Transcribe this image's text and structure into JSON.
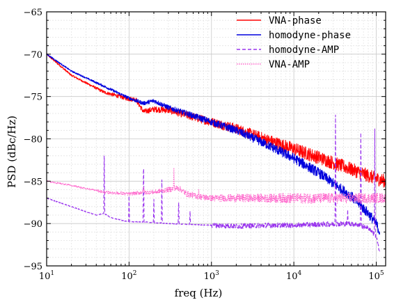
{
  "chart_data": {
    "type": "line",
    "title": "",
    "xlabel": "freq (Hz)",
    "ylabel": "PSD (dBc/Hz)",
    "x_scale": "log",
    "xlim": [
      10,
      130000
    ],
    "ylim": [
      -95,
      -65
    ],
    "grid": true,
    "legend_position": "top-right",
    "x_ticks": [
      10,
      100,
      1000,
      10000,
      100000
    ],
    "x_tick_labels": [
      {
        "base": "10",
        "exp": "1"
      },
      {
        "base": "10",
        "exp": "2"
      },
      {
        "base": "10",
        "exp": "3"
      },
      {
        "base": "10",
        "exp": "4"
      },
      {
        "base": "10",
        "exp": "5"
      }
    ],
    "y_ticks": [
      -95,
      -90,
      -85,
      -80,
      -75,
      -70,
      -65
    ],
    "y_tick_labels": [
      "−95",
      "−90",
      "−85",
      "−80",
      "−75",
      "−70",
      "−65"
    ],
    "series": [
      {
        "name": "VNA-phase",
        "color": "#ff0000",
        "style": "solid",
        "noise": 0.8,
        "x": [
          10,
          20,
          50,
          100,
          120,
          150,
          200,
          300,
          500,
          1000,
          2000,
          5000,
          10000,
          20000,
          50000,
          100000,
          130000
        ],
        "y": [
          -70,
          -72.5,
          -74.5,
          -75.3,
          -75.3,
          -76.8,
          -76.5,
          -76.6,
          -77.2,
          -78,
          -78.8,
          -80.2,
          -81.2,
          -82.2,
          -83.6,
          -84.7,
          -85
        ]
      },
      {
        "name": "homodyne-phase",
        "color": "#0000dd",
        "style": "solid",
        "noise": 0.6,
        "x": [
          10,
          20,
          50,
          100,
          150,
          200,
          300,
          500,
          1000,
          2000,
          5000,
          10000,
          20000,
          50000,
          80000,
          100000,
          110000
        ],
        "y": [
          -70,
          -72,
          -73.8,
          -75.2,
          -75.8,
          -75.5,
          -76.3,
          -77,
          -78,
          -79,
          -80.8,
          -82.3,
          -84,
          -86.8,
          -88.8,
          -90,
          -91
        ]
      },
      {
        "name": "homodyne-AMP",
        "color": "#9933ee",
        "style": "dashed",
        "noise": 0.3,
        "x": [
          10,
          20,
          30,
          40,
          50,
          60,
          80,
          100,
          150,
          200,
          300,
          500,
          1000,
          2000,
          5000,
          10000,
          20000,
          50000,
          80000,
          100000,
          110000
        ],
        "y": [
          -87,
          -88,
          -88.6,
          -89,
          -88.8,
          -89.3,
          -89.6,
          -89.8,
          -89.8,
          -89.9,
          -90,
          -90.1,
          -90.2,
          -90.3,
          -90.2,
          -90.2,
          -90.1,
          -90,
          -90.5,
          -91.5,
          -93.5
        ],
        "spikes": [
          {
            "x": 50,
            "y": -80.4
          },
          {
            "x": 100,
            "y": -86.5
          },
          {
            "x": 150,
            "y": -81.8
          },
          {
            "x": 200,
            "y": -87
          },
          {
            "x": 250,
            "y": -84.5
          },
          {
            "x": 400,
            "y": -87
          },
          {
            "x": 550,
            "y": -88.5
          },
          {
            "x": 32000,
            "y": -77
          },
          {
            "x": 45000,
            "y": -88.3
          },
          {
            "x": 65000,
            "y": -78.2
          },
          {
            "x": 96000,
            "y": -78.5
          }
        ]
      },
      {
        "name": "VNA-AMP",
        "color": "#ff66cc",
        "style": "dotted",
        "noise": 0.6,
        "x": [
          10,
          20,
          50,
          100,
          150,
          200,
          300,
          400,
          500,
          700,
          1000,
          2000,
          5000,
          10000,
          20000,
          50000,
          100000,
          130000
        ],
        "y": [
          -85,
          -85.5,
          -86.3,
          -86.5,
          -86.3,
          -86.3,
          -86,
          -85.8,
          -86.5,
          -86.8,
          -87,
          -87,
          -87,
          -87,
          -87,
          -87,
          -87,
          -87
        ],
        "spikes": [
          {
            "x": 350,
            "y": -83.4
          },
          {
            "x": 150,
            "y": -85.6
          },
          {
            "x": 700,
            "y": -85.8
          }
        ]
      }
    ]
  }
}
